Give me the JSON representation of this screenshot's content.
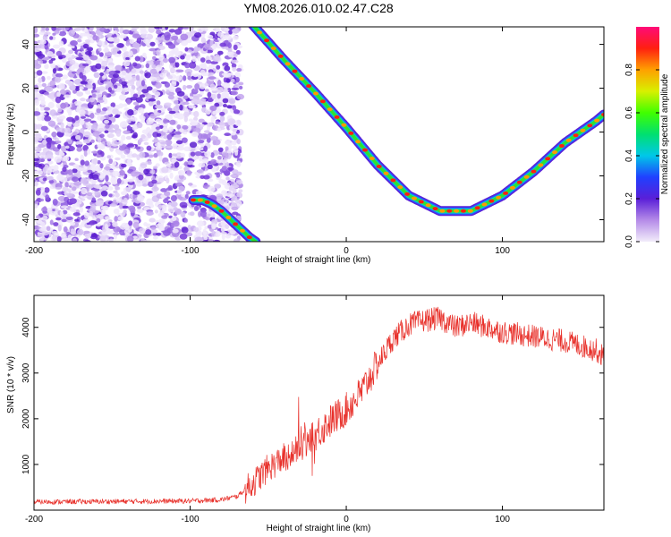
{
  "title": "YM08.2026.010.02.47.C28",
  "chart_data": [
    {
      "type": "heatmap",
      "xlabel": "Height of straight line (km)",
      "ylabel": "Frequency (Hz)",
      "xlim": [
        -200,
        165
      ],
      "ylim": [
        -50,
        48
      ],
      "xticks": [
        -200,
        -100,
        0,
        100
      ],
      "yticks": [
        -40,
        -20,
        0,
        20,
        40
      ],
      "colorbar": {
        "label": "Normalized spectral amplitude",
        "range": [
          0,
          1
        ],
        "ticks": [
          "0.0",
          "0.2",
          "0.4",
          "0.6",
          "0.8"
        ]
      },
      "noise_region_x": [
        -200,
        -72
      ],
      "track_main": {
        "x": [
          -60,
          -40,
          -20,
          0,
          20,
          40,
          60,
          80,
          100,
          120,
          140,
          160,
          165
        ],
        "y": [
          49,
          33,
          18,
          2,
          -15,
          -29,
          -36,
          -36,
          -29,
          -18,
          -5,
          5,
          8
        ]
      },
      "track_left": {
        "x": [
          -98,
          -92,
          -86,
          -80,
          -74,
          -68,
          -62,
          -58
        ],
        "y": [
          -31,
          -31,
          -33,
          -36,
          -40,
          -44,
          -48,
          -50
        ]
      }
    },
    {
      "type": "line",
      "xlabel": "Height of straight line (km)",
      "ylabel": "SNR (10 * v/v)",
      "xlim": [
        -200,
        165
      ],
      "ylim": [
        0,
        4700
      ],
      "xticks": [
        -200,
        -100,
        0,
        100
      ],
      "yticks": [
        1000,
        2000,
        3000,
        4000
      ],
      "series": [
        {
          "name": "SNR",
          "color": "#e8302a",
          "envelope_x": [
            -200,
            -150,
            -100,
            -80,
            -70,
            -60,
            -50,
            -40,
            -30,
            -20,
            -10,
            0,
            10,
            20,
            30,
            40,
            50,
            60,
            70,
            80,
            100,
            120,
            140,
            160,
            165
          ],
          "envelope_y": [
            180,
            190,
            200,
            230,
            300,
            580,
            920,
            1150,
            1350,
            1650,
            1950,
            2200,
            2600,
            3200,
            3750,
            4050,
            4150,
            4200,
            4000,
            4100,
            3900,
            3800,
            3700,
            3500,
            3350
          ]
        }
      ]
    }
  ]
}
